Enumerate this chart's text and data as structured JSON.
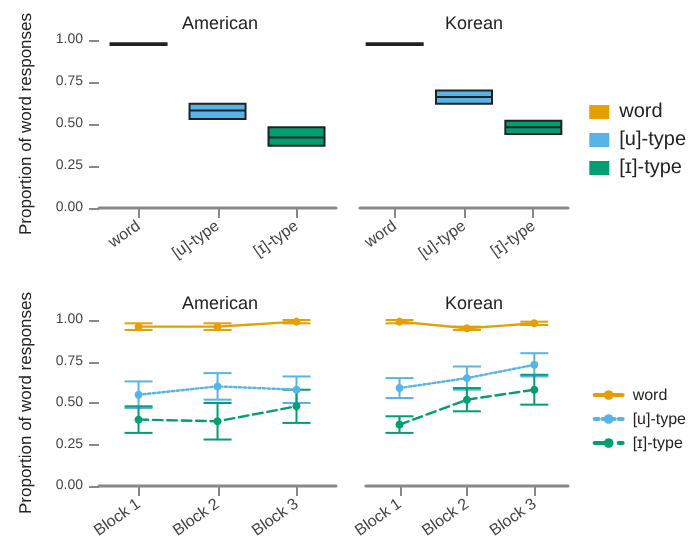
{
  "chart_data": [
    {
      "type": "box",
      "title": "American",
      "ylabel": "Proportion of word responses",
      "categories": [
        "word",
        "[u]-type",
        "[ɪ]-type"
      ],
      "series": [
        {
          "color": "#e69f00",
          "boxes": [
            {
              "low": 0.97,
              "q1": 0.97,
              "median": 0.975,
              "q3": 0.98,
              "high": 0.98
            },
            null,
            null
          ]
        },
        {
          "color": "#56b4e9",
          "boxes": [
            null,
            {
              "low": 0.53,
              "q1": 0.53,
              "median": 0.58,
              "q3": 0.62,
              "high": 0.62
            },
            null
          ]
        },
        {
          "color": "#009e73",
          "boxes": [
            null,
            null,
            {
              "low": 0.37,
              "q1": 0.37,
              "median": 0.42,
              "q3": 0.48,
              "high": 0.48
            }
          ]
        }
      ],
      "ylim": [
        0,
        1
      ],
      "yticks": [
        {
          "value": 0,
          "label": "0.00"
        },
        {
          "value": 0.25,
          "label": "0.25"
        },
        {
          "value": 0.5,
          "label": "0.50"
        },
        {
          "value": 0.75,
          "label": "0.75"
        },
        {
          "value": 1,
          "label": "1.00"
        }
      ],
      "grid": false
    },
    {
      "type": "box",
      "title": "Korean",
      "categories": [
        "word",
        "[u]-type",
        "[ɪ]-type"
      ],
      "series": [
        {
          "name": "word",
          "color": "#e69f00",
          "boxes": [
            {
              "low": 0.97,
              "q1": 0.97,
              "median": 0.975,
              "q3": 0.98,
              "high": 0.98
            },
            null,
            null
          ]
        },
        {
          "name": "[u]-type",
          "color": "#56b4e9",
          "boxes": [
            null,
            {
              "low": 0.62,
              "q1": 0.62,
              "median": 0.66,
              "q3": 0.7,
              "high": 0.7
            },
            null
          ]
        },
        {
          "name": "[ɪ]-type",
          "color": "#009e73",
          "boxes": [
            null,
            null,
            {
              "low": 0.44,
              "q1": 0.44,
              "median": 0.48,
              "q3": 0.52,
              "high": 0.52
            }
          ]
        }
      ],
      "ylim": [
        0,
        1
      ],
      "grid": false,
      "tick_labels": "x",
      "legend": "right"
    },
    {
      "type": "line",
      "title": "American",
      "ylabel": "Proportion of word responses",
      "categories": [
        "Block 1",
        "Block 2",
        "Block 3"
      ],
      "marker": "circle",
      "series": [
        {
          "color": "#e69f00",
          "line_style": "solid",
          "values": [
            0.96,
            0.96,
            0.99
          ],
          "errors": [
            0.02,
            0.02,
            0.01
          ]
        },
        {
          "color": "#56b4e9",
          "line_style": "dotted",
          "values": [
            0.55,
            0.6,
            0.58
          ],
          "errors": [
            0.08,
            0.08,
            0.08
          ]
        },
        {
          "color": "#009e73",
          "line_style": "dashed",
          "values": [
            0.4,
            0.39,
            0.48
          ],
          "errors": [
            0.08,
            0.11,
            0.1
          ]
        }
      ],
      "ylim": [
        0,
        1
      ],
      "yticks": [
        {
          "value": 0,
          "label": "0.00"
        },
        {
          "value": 0.25,
          "label": "0.25"
        },
        {
          "value": 0.5,
          "label": "0.50"
        },
        {
          "value": 0.75,
          "label": "0.75"
        },
        {
          "value": 1,
          "label": "1.00"
        }
      ],
      "grid": false
    },
    {
      "type": "line",
      "title": "Korean",
      "categories": [
        "Block 1",
        "Block 2",
        "Block 3"
      ],
      "marker": "circle",
      "series": [
        {
          "name": "word",
          "color": "#e69f00",
          "line_style": "solid",
          "values": [
            0.99,
            0.95,
            0.98
          ],
          "errors": [
            0.01,
            0.01,
            0.01
          ]
        },
        {
          "name": "[u]-type",
          "color": "#56b4e9",
          "line_style": "dotted",
          "values": [
            0.59,
            0.65,
            0.73
          ],
          "errors": [
            0.06,
            0.07,
            0.07
          ]
        },
        {
          "name": "[ɪ]-type",
          "color": "#009e73",
          "line_style": "dashed",
          "values": [
            0.37,
            0.52,
            0.58
          ],
          "errors": [
            0.05,
            0.07,
            0.09
          ]
        }
      ],
      "ylim": [
        0,
        1
      ],
      "grid": false,
      "tick_labels": "x",
      "legend": "right"
    }
  ]
}
